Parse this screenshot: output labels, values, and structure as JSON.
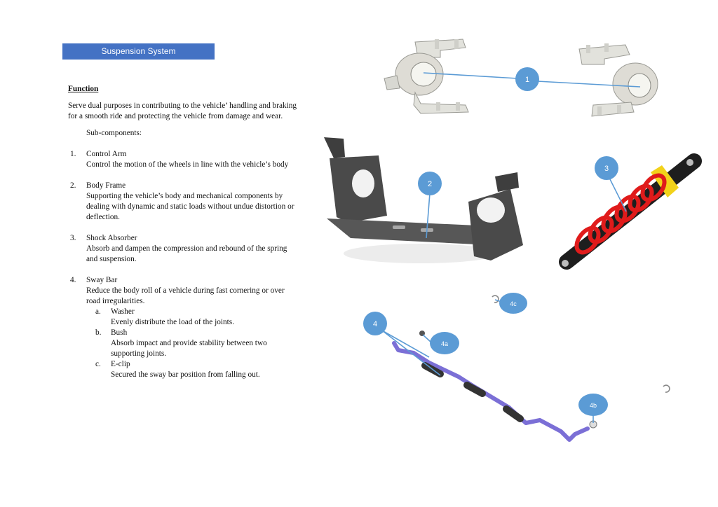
{
  "header": {
    "title": "Suspension System"
  },
  "function_section": {
    "heading": "Function",
    "intro": "Serve dual purposes in contributing to the vehicle’ handling and braking for a smooth ride and protecting the vehicle from damage and wear.",
    "subcomponents_label": "Sub-components:"
  },
  "components": [
    {
      "number": "1.",
      "name": "Control Arm",
      "description": "Control the motion of the wheels in line with the vehicle’s body"
    },
    {
      "number": "2.",
      "name": "Body Frame",
      "description": "Supporting the vehicle’s body and mechanical components by dealing with dynamic and static loads without undue distortion or deflection."
    },
    {
      "number": "3.",
      "name": "Shock Absorber",
      "description": "Absorb and dampen the compression and rebound of the spring and suspension."
    },
    {
      "number": "4.",
      "name": "Sway Bar",
      "description": "Reduce the body roll of a vehicle during fast cornering or over road irregularities.",
      "subitems": [
        {
          "letter": "a.",
          "name": "Washer",
          "description": "Evenly distribute the load of the joints."
        },
        {
          "letter": "b.",
          "name": "Bush",
          "description": "Absorb impact and provide stability between two supporting joints."
        },
        {
          "letter": "c.",
          "name": "E-clip",
          "description": "Secured the sway bar position from falling out."
        }
      ]
    }
  ],
  "callouts": {
    "c1": "1",
    "c2": "2",
    "c3": "3",
    "c4": "4",
    "c4a": "4a",
    "c4b": "4b",
    "c4c": "4c"
  },
  "colors": {
    "header": "#4472c4",
    "callout": "#5b9bd5",
    "frame": "#4a4a4a",
    "spring": "#e01b1b",
    "bar": "#7b6fd6",
    "bracket": "#dcdcd6"
  }
}
